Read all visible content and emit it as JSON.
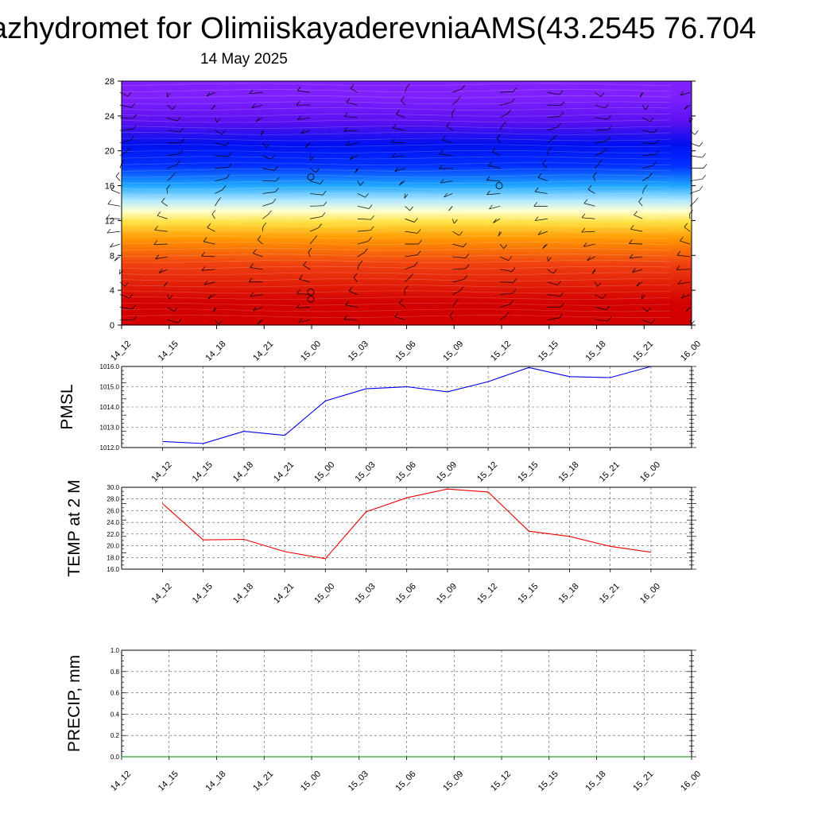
{
  "title": "azhydromet for OlimiiskayaderevniaAMS(43.2545 76.704",
  "date": "14 May 2025",
  "chart_data": [
    {
      "type": "heatmap",
      "x_tick_labels": [
        "14_12",
        "14_15",
        "14_18",
        "14_21",
        "15_00",
        "15_03",
        "15_06",
        "15_09",
        "15_12",
        "15_15",
        "15_18",
        "15_21",
        "16_00"
      ],
      "ylim": [
        0,
        28
      ],
      "y_ticks": [
        0,
        4,
        8,
        12,
        16,
        20,
        24,
        28
      ],
      "color_bands": [
        {
          "from": 0,
          "to": 5,
          "color": "#d40000"
        },
        {
          "from": 5,
          "to": 9,
          "color": "#f04010"
        },
        {
          "from": 9,
          "to": 11,
          "color": "#ff9a00"
        },
        {
          "from": 11,
          "to": 12.6,
          "color": "#ffe040"
        },
        {
          "from": 12.6,
          "to": 13.6,
          "color": "#ffffd0"
        },
        {
          "from": 13.6,
          "to": 15,
          "color": "#b0e8ff"
        },
        {
          "from": 15,
          "to": 17,
          "color": "#20a8ff"
        },
        {
          "from": 17,
          "to": 19.5,
          "color": "#0030ff"
        },
        {
          "from": 19.5,
          "to": 22,
          "color": "#0010f0"
        },
        {
          "from": 22,
          "to": 24.5,
          "color": "#5a10f0"
        },
        {
          "from": 24.5,
          "to": 28,
          "color": "#8020ff"
        }
      ],
      "overlay": "wind barbs",
      "grid": false
    },
    {
      "type": "line",
      "ylabel": "PMSL",
      "categories": [
        "14_12",
        "14_15",
        "14_18",
        "14_21",
        "15_00",
        "15_03",
        "15_06",
        "15_09",
        "15_12",
        "15_15",
        "15_18",
        "15_21",
        "16_00"
      ],
      "values": [
        1012.3,
        1012.2,
        1012.8,
        1012.6,
        1014.3,
        1014.9,
        1015.0,
        1014.75,
        1015.25,
        1015.95,
        1015.5,
        1015.45,
        1016.0
      ],
      "ylim": [
        1012.0,
        1016.0
      ],
      "y_tick_labels": [
        "1012.0",
        "1013.0",
        "1014.0",
        "1015.0",
        "1016.0"
      ],
      "line_color": "#0000ee",
      "grid": true
    },
    {
      "type": "line",
      "ylabel": "TEMP at 2 M",
      "categories": [
        "14_12",
        "14_15",
        "14_18",
        "14_21",
        "15_00",
        "15_03",
        "15_06",
        "15_09",
        "15_12",
        "15_15",
        "15_18",
        "15_21",
        "16_00"
      ],
      "values": [
        27.2,
        21.0,
        21.1,
        19.0,
        17.8,
        25.8,
        28.2,
        29.7,
        29.2,
        22.5,
        21.6,
        19.9,
        18.9
      ],
      "ylim": [
        16.0,
        30.0
      ],
      "y_tick_labels": [
        "16.0",
        "18.0",
        "20.0",
        "22.0",
        "24.0",
        "26.0",
        "28.0",
        "30.0"
      ],
      "line_color": "#ee0000",
      "grid": true
    },
    {
      "type": "line",
      "ylabel": "PRECIP, mm",
      "categories": [
        "14_12",
        "14_15",
        "14_18",
        "14_21",
        "15_00",
        "15_03",
        "15_06",
        "15_09",
        "15_12",
        "15_15",
        "15_18",
        "15_21",
        "16_00"
      ],
      "values": [
        0,
        0,
        0,
        0,
        0,
        0,
        0,
        0,
        0,
        0,
        0,
        0,
        0
      ],
      "ylim": [
        0.0,
        1.0
      ],
      "y_tick_labels": [
        "0.0",
        "0.2",
        "0.4",
        "0.6",
        "0.8",
        "1.0"
      ],
      "line_color": "#008800",
      "grid": true
    }
  ]
}
